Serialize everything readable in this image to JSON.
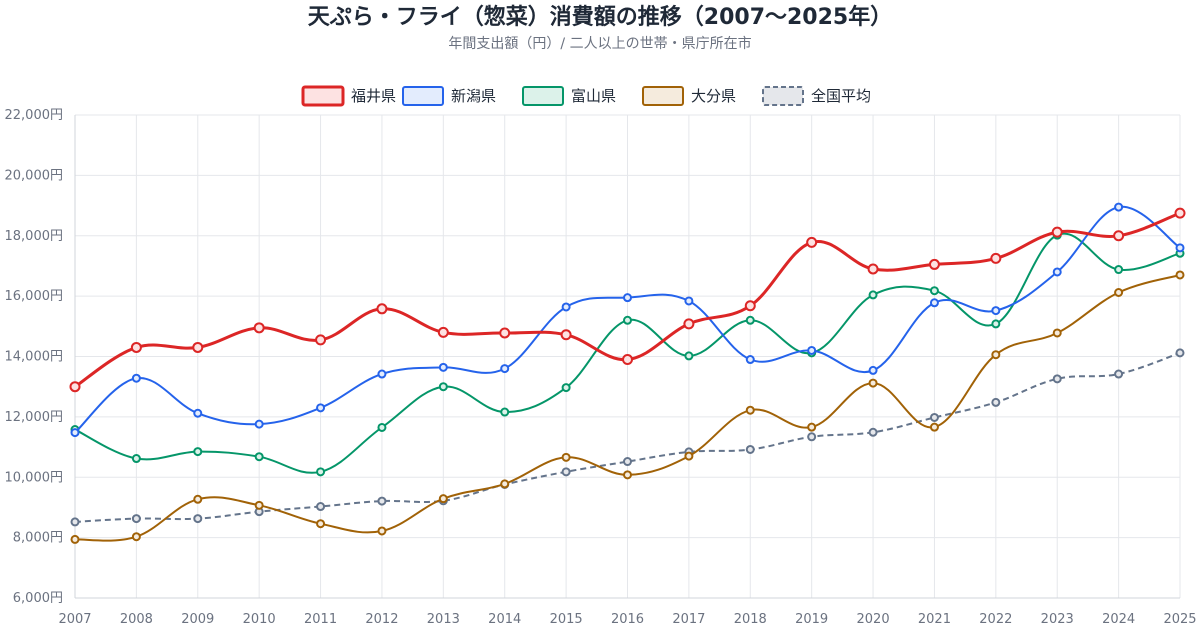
{
  "chart_data": {
    "type": "line",
    "title": "天ぷら・フライ（惣菜）消費額の推移（2007〜2025年）",
    "subtitle": "年間支出額（円）/ 二人以上の世帯・県庁所在市",
    "x": [
      "2007",
      "2008",
      "2009",
      "2010",
      "2011",
      "2012",
      "2013",
      "2014",
      "2015",
      "2016",
      "2017",
      "2018",
      "2019",
      "2020",
      "2021",
      "2022",
      "2023",
      "2024",
      "2025"
    ],
    "ylim": [
      6000,
      22000
    ],
    "yticks": [
      6000,
      8000,
      10000,
      12000,
      14000,
      16000,
      18000,
      20000,
      22000
    ],
    "ytick_labels": [
      "6,000円",
      "8,000円",
      "10,000円",
      "12,000円",
      "14,000円",
      "16,000円",
      "18,000円",
      "20,000円",
      "22,000円"
    ],
    "grid": true,
    "legend_position": "top-center",
    "series": [
      {
        "name": "福井県",
        "color": "#dc2626",
        "fill": "#fde2e2",
        "dashed": false,
        "bold": true,
        "values": [
          13000,
          14300,
          14300,
          14950,
          14550,
          15580,
          14800,
          14780,
          14720,
          13900,
          15080,
          15680,
          17780,
          16900,
          17050,
          17250,
          18120,
          18000,
          18750
        ]
      },
      {
        "name": "新潟県",
        "color": "#2563eb",
        "fill": "#e3ecfd",
        "dashed": false,
        "bold": false,
        "values": [
          11480,
          13280,
          12120,
          11760,
          12300,
          13420,
          13640,
          13600,
          15640,
          15950,
          15840,
          13900,
          14200,
          13540,
          15780,
          15520,
          16800,
          18950,
          17600
        ]
      },
      {
        "name": "富山県",
        "color": "#059669",
        "fill": "#dcf2ea",
        "dashed": false,
        "bold": false,
        "values": [
          11580,
          10620,
          10850,
          10680,
          10180,
          11650,
          13000,
          12160,
          12970,
          15200,
          14020,
          15200,
          14120,
          16040,
          16180,
          15080,
          18020,
          16880,
          17420
        ]
      },
      {
        "name": "大分県",
        "color": "#a16207",
        "fill": "#f5ebdd",
        "dashed": false,
        "bold": false,
        "values": [
          7940,
          8030,
          9270,
          9070,
          8460,
          8220,
          9290,
          9780,
          10660,
          10080,
          10700,
          12220,
          11660,
          13120,
          11660,
          14060,
          14780,
          16120,
          16700
        ]
      },
      {
        "name": "全国平均",
        "color": "#64748b",
        "fill": "#e5e7eb",
        "dashed": true,
        "bold": false,
        "values": [
          8520,
          8630,
          8630,
          8860,
          9030,
          9210,
          9220,
          9760,
          10180,
          10520,
          10840,
          10920,
          11340,
          11490,
          11980,
          12480,
          13260,
          13420,
          14120
        ]
      }
    ]
  }
}
